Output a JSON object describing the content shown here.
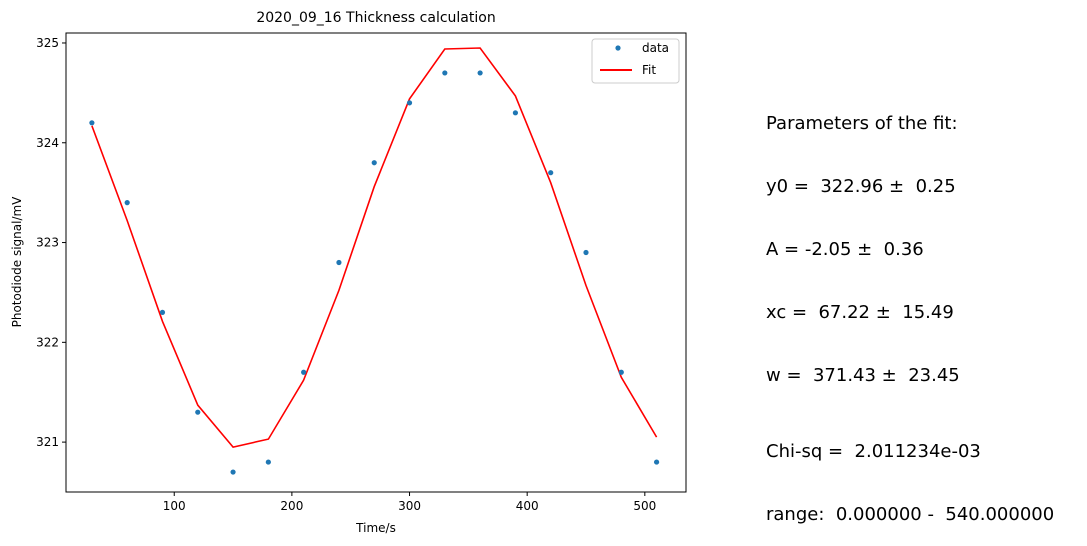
{
  "chart_data": {
    "type": "scatter",
    "title": "2020_09_16 Thickness calculation",
    "xlabel": "Time/s",
    "ylabel": "Photodiode signal/mV",
    "xlim": [
      8,
      535
    ],
    "ylim": [
      320.5,
      325.1
    ],
    "xticks": [
      100,
      200,
      300,
      400,
      500
    ],
    "yticks": [
      321,
      322,
      323,
      324,
      325
    ],
    "legend_position": "top-right",
    "grid": false,
    "series": [
      {
        "name": "data",
        "kind": "points",
        "color": "#1f77b4",
        "x": [
          30,
          60,
          90,
          120,
          150,
          180,
          210,
          240,
          270,
          300,
          330,
          360,
          390,
          420,
          450,
          480,
          510
        ],
        "y": [
          324.2,
          323.4,
          322.3,
          321.3,
          320.7,
          320.8,
          321.7,
          322.8,
          323.8,
          324.4,
          324.7,
          324.7,
          324.3,
          323.7,
          322.9,
          321.7,
          320.8
        ]
      },
      {
        "name": "Fit",
        "kind": "line",
        "color": "#ff0000",
        "x": [
          30,
          60,
          90,
          120,
          150,
          180,
          210,
          240,
          270,
          300,
          330,
          360,
          390,
          420,
          450,
          480,
          510
        ],
        "y": [
          324.17,
          323.22,
          322.21,
          321.37,
          320.95,
          321.03,
          321.62,
          322.52,
          323.56,
          324.44,
          324.94,
          324.95,
          324.47,
          323.6,
          322.57,
          321.65,
          321.05
        ]
      }
    ]
  },
  "params_panel": {
    "heading": "Parameters of the fit:",
    "lines": [
      "y0 =  322.96 ±  0.25",
      "A = -2.05 ±  0.36",
      "xc =  67.22 ±  15.49",
      "w =  371.43 ±  23.45"
    ]
  },
  "stats_panel": {
    "chisq": "Chi-sq =  2.011234e-03",
    "range": "range:  0.000000 -  540.000000"
  }
}
